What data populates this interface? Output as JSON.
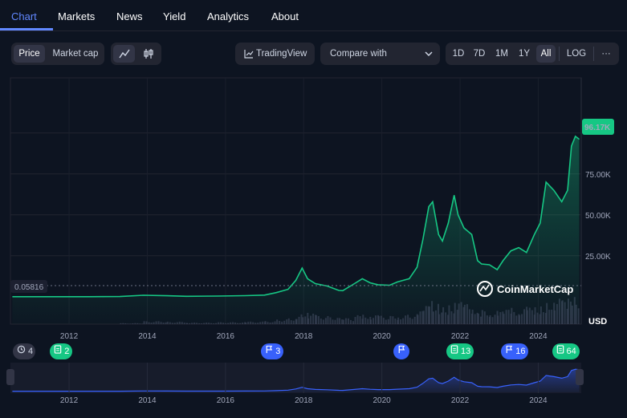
{
  "tabs": [
    "Chart",
    "Markets",
    "News",
    "Yield",
    "Analytics",
    "About"
  ],
  "toolbar": {
    "price_label": "Price",
    "market_cap_label": "Market cap",
    "line_icon": "line-chart-icon",
    "candle_icon": "candlestick-icon",
    "tradingview_label": "TradingView",
    "compare_label": "Compare with",
    "ranges": [
      "1D",
      "7D",
      "1M",
      "1Y",
      "All"
    ],
    "log_label": "LOG",
    "more_label": "···"
  },
  "chart_data": {
    "type": "area",
    "y_ticks": [
      "75.00K",
      "50.00K",
      "25.00K"
    ],
    "y_tick_values": [
      75000,
      50000,
      25000
    ],
    "ylim": [
      -5000,
      120000
    ],
    "x_ticks": [
      "2012",
      "2014",
      "2016",
      "2018",
      "2020",
      "2022",
      "2024"
    ],
    "x_tick_years": [
      2012,
      2014,
      2016,
      2018,
      2020,
      2022,
      2024
    ],
    "xlim": [
      2010.5,
      2025.1
    ],
    "current_price_label": "96.17K",
    "start_price_label": "0.05816",
    "volume_label": "USD",
    "watermark": "CoinMarketCap",
    "line_color": "#16c784",
    "series": [
      {
        "x": [
          2010.55,
          2011.5,
          2012.5,
          2013.3,
          2013.9,
          2014.5,
          2015.0,
          2015.8,
          2016.5,
          2017.0,
          2017.3,
          2017.6,
          2017.8,
          2017.96,
          2018.1,
          2018.3,
          2018.6,
          2018.9,
          2019.0,
          2019.3,
          2019.5,
          2019.7,
          2019.9,
          2020.2,
          2020.4,
          2020.7,
          2020.9,
          2021.05,
          2021.2,
          2021.3,
          2021.45,
          2021.55,
          2021.7,
          2021.85,
          2021.95,
          2022.1,
          2022.3,
          2022.45,
          2022.55,
          2022.75,
          2022.95,
          2023.1,
          2023.3,
          2023.5,
          2023.7,
          2023.9,
          2024.05,
          2024.2,
          2024.4,
          2024.6,
          2024.75,
          2024.85,
          2024.95,
          2025.05
        ],
        "y": [
          0.06,
          5,
          12,
          110,
          900,
          600,
          250,
          400,
          650,
          1000,
          2500,
          4500,
          10000,
          17500,
          11000,
          8000,
          6500,
          3800,
          3700,
          8000,
          11000,
          8500,
          7300,
          7000,
          9000,
          11000,
          18000,
          35000,
          55000,
          58000,
          38000,
          34000,
          45000,
          62000,
          50000,
          42000,
          38000,
          22000,
          20000,
          19500,
          16500,
          22000,
          28000,
          30000,
          27000,
          38000,
          45000,
          70000,
          65000,
          58000,
          65000,
          92000,
          98000,
          96170
        ]
      }
    ],
    "event_badges": [
      {
        "icon": "history-icon",
        "count": "4",
        "color": "gray",
        "x": 2010.7
      },
      {
        "icon": "document-icon",
        "count": "2",
        "color": "green",
        "x": 2011.8
      },
      {
        "icon": "flag-icon",
        "count": "3",
        "color": "blue",
        "x": 2017.2
      },
      {
        "icon": "flag-icon",
        "count": "",
        "color": "blue",
        "x": 2020.5
      },
      {
        "icon": "document-icon",
        "count": "13",
        "color": "green",
        "x": 2022.0
      },
      {
        "icon": "flag-icon",
        "count": "16",
        "color": "blue",
        "x": 2023.4
      },
      {
        "icon": "document-icon",
        "count": "64",
        "color": "green",
        "x": 2024.7
      }
    ],
    "navigator_x_ticks": [
      "2012",
      "2014",
      "2016",
      "2018",
      "2020",
      "2022",
      "2024"
    ]
  }
}
